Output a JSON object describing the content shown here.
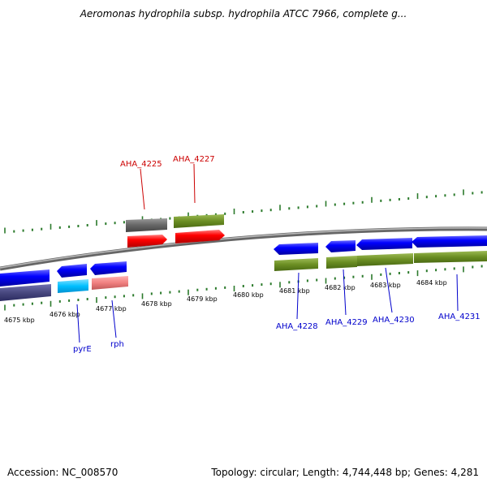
{
  "title": "Aeromonas hydrophila subsp. hydrophila ATCC 7966, complete g...",
  "footer": {
    "accession": "Accession: NC_008570",
    "topology": "Topology: circular; Length: 4,744,448 bp; Genes: 4,281"
  },
  "colors": {
    "tick": "#2b7a2b",
    "backbone": "#888888",
    "label_top": "#cc0000",
    "label_bottom": "#0000cc"
  },
  "scale_labels": [
    "4675 kbp",
    "4676 kbp",
    "4677 kbp",
    "4678 kbp",
    "4679 kbp",
    "4680 kbp",
    "4681 kbp",
    "4682 kbp",
    "4683 kbp",
    "4684 kbp"
  ],
  "gene_labels": {
    "top": [
      "AHA_4225",
      "AHA_4227"
    ],
    "bottom": [
      "pyrE",
      "rph",
      "AHA_4228",
      "AHA_4229",
      "AHA_4230",
      "AHA_4231"
    ]
  },
  "features": [
    {
      "name": "AHA_4225",
      "strand": "forward",
      "color": "#ff0000",
      "row": "cds"
    },
    {
      "name": "AHA_4225",
      "strand": "none",
      "color": "#666666",
      "row": "gene"
    },
    {
      "name": "AHA_4227",
      "strand": "forward",
      "color": "#ff0000",
      "row": "cds"
    },
    {
      "name": "AHA_4227",
      "strand": "none",
      "color": "#6b8e23",
      "row": "gene"
    },
    {
      "name": "pyrE",
      "strand": "reverse",
      "color": "#0000ff",
      "row": "gene"
    },
    {
      "name": "pyrE",
      "strand": "none",
      "color": "#00bfff",
      "row": "cds"
    },
    {
      "name": "rph",
      "strand": "reverse",
      "color": "#0000ff",
      "row": "gene"
    },
    {
      "name": "rph",
      "strand": "none",
      "color": "#f08080",
      "row": "cds"
    },
    {
      "name": "AHA_4228",
      "strand": "reverse",
      "color": "#0000ff",
      "row": "gene"
    },
    {
      "name": "AHA_4229",
      "strand": "reverse",
      "color": "#0000ff",
      "row": "gene"
    },
    {
      "name": "AHA_4230",
      "strand": "reverse",
      "color": "#0000ff",
      "row": "gene"
    },
    {
      "name": "AHA_4231",
      "strand": "reverse",
      "color": "#0000ff",
      "row": "gene"
    }
  ]
}
